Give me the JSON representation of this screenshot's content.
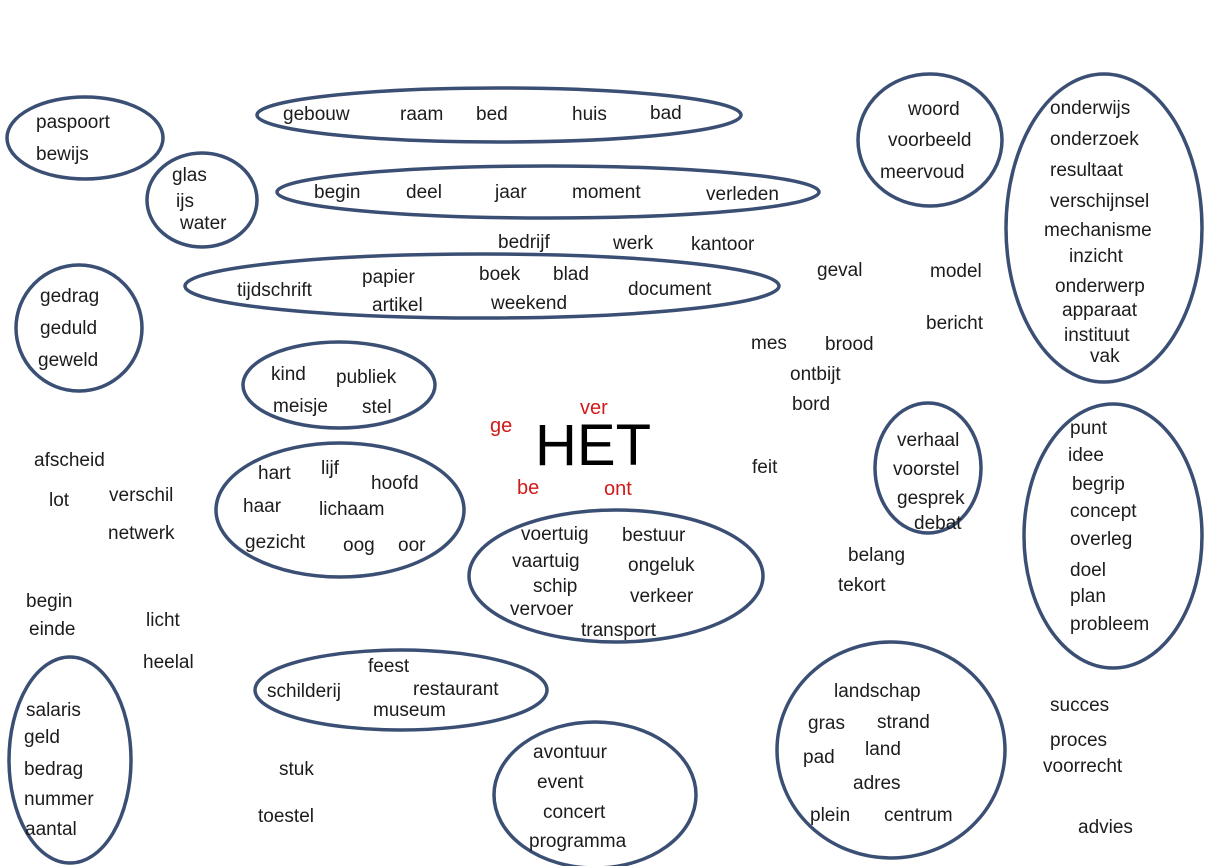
{
  "center": {
    "word": "HET",
    "prefixes": [
      "ge",
      "ver",
      "be",
      "ont"
    ]
  },
  "words": [
    "paspoort",
    "bewijs",
    "gebouw",
    "raam",
    "bed",
    "huis",
    "bad",
    "glas",
    "ijs",
    "water",
    "begin",
    "deel",
    "jaar",
    "moment",
    "verleden",
    "bedrijf",
    "werk",
    "kantoor",
    "tijdschrift",
    "papier",
    "artikel",
    "boek",
    "blad",
    "weekend",
    "document",
    "geval",
    "model",
    "bericht",
    "woord",
    "voorbeeld",
    "meervoud",
    "onderwijs",
    "onderzoek",
    "resultaat",
    "verschijnsel",
    "mechanisme",
    "inzicht",
    "onderwerp",
    "apparaat",
    "instituut",
    "vak",
    "gedrag",
    "geduld",
    "geweld",
    "mes",
    "brood",
    "ontbijt",
    "bord",
    "kind",
    "publiek",
    "meisje",
    "stel",
    "afscheid",
    "lot",
    "verschil",
    "netwerk",
    "hart",
    "lijf",
    "hoofd",
    "haar",
    "lichaam",
    "gezicht",
    "oog",
    "oor",
    "feit",
    "verhaal",
    "voorstel",
    "gesprek",
    "debat",
    "punt",
    "idee",
    "begrip",
    "concept",
    "overleg",
    "doel",
    "plan",
    "probleem",
    "voertuig",
    "bestuur",
    "vaartuig",
    "ongeluk",
    "schip",
    "verkeer",
    "vervoer",
    "transport",
    "belang",
    "tekort",
    "begin",
    "einde",
    "licht",
    "heelal",
    "feest",
    "schilderij",
    "restaurant",
    "museum",
    "salaris",
    "geld",
    "bedrag",
    "nummer",
    "aantal",
    "stuk",
    "toestel",
    "avontuur",
    "event",
    "concert",
    "programma",
    "landschap",
    "gras",
    "strand",
    "pad",
    "land",
    "adres",
    "plein",
    "centrum",
    "succes",
    "proces",
    "voorrecht",
    "advies"
  ],
  "colors": {
    "outline": "#3a4f73",
    "text": "#1c1c1c",
    "prefix": "#d11a1a",
    "center": "#000000"
  }
}
